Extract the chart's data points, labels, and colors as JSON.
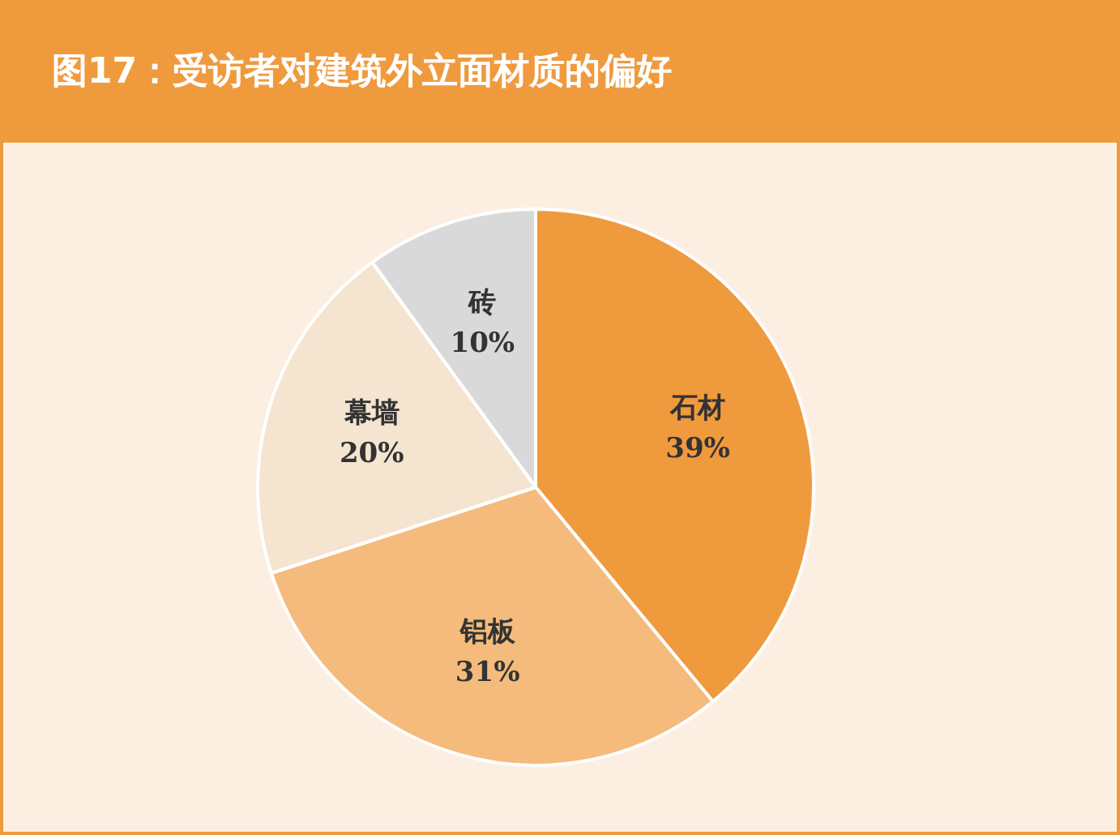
{
  "chart_data": {
    "type": "pie",
    "title": "图17：受访者对建筑外立面材质的偏好",
    "categories": [
      "石材",
      "铝板",
      "幕墙",
      "砖"
    ],
    "values": [
      39,
      31,
      20,
      10
    ],
    "value_labels": [
      "39%",
      "31%",
      "20%",
      "10%"
    ],
    "colors": [
      "#f09a3e",
      "#f4bb7d",
      "#f5e4cf",
      "#d9d9d9"
    ],
    "legend": false
  }
}
